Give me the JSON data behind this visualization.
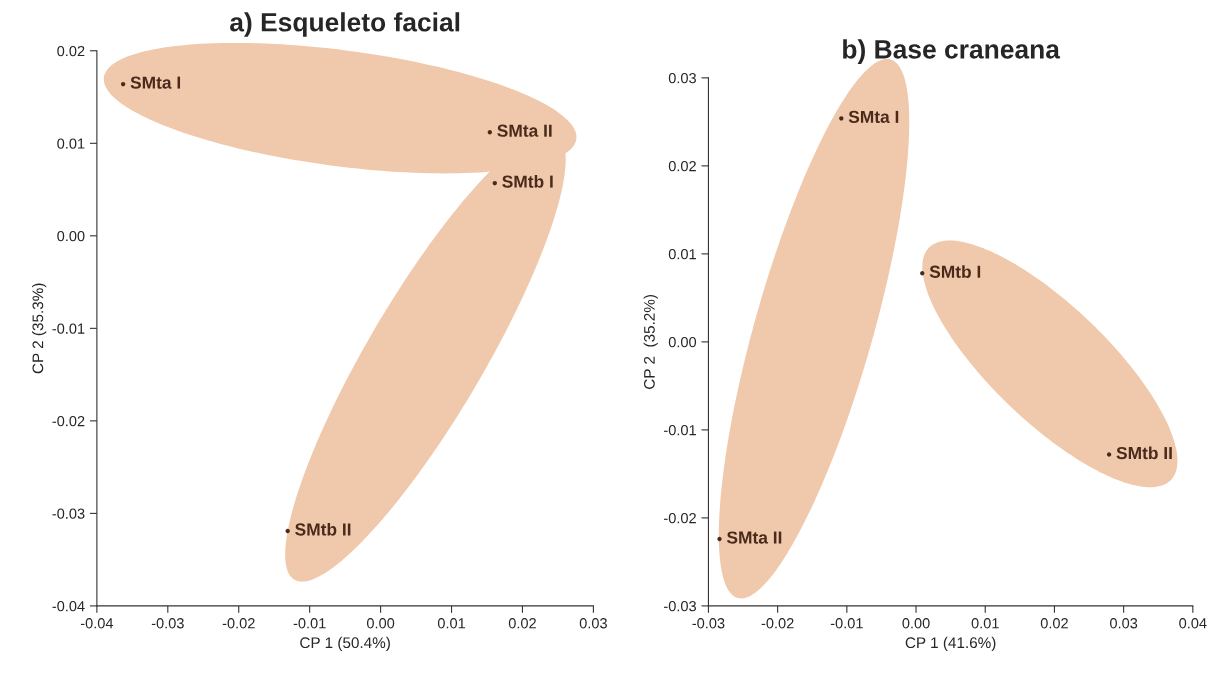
{
  "chart_data": [
    {
      "type": "scatter",
      "title": "a) Esqueleto facial",
      "xlabel": "CP 1 (50.4%)",
      "ylabel": "CP 2 (35.3%)",
      "xlim": [
        -0.04,
        0.03
      ],
      "ylim": [
        -0.04,
        0.02
      ],
      "xticks": [
        {
          "value": -0.04,
          "label": "-0.04"
        },
        {
          "value": -0.03,
          "label": "-0.03"
        },
        {
          "value": -0.02,
          "label": "-0.02"
        },
        {
          "value": -0.01,
          "label": "-0.01"
        },
        {
          "value": 0.0,
          "label": "0.00"
        },
        {
          "value": 0.01,
          "label": "0.01"
        },
        {
          "value": 0.02,
          "label": "0.02"
        },
        {
          "value": 0.03,
          "label": "0.03"
        }
      ],
      "yticks": [
        {
          "value": -0.04,
          "label": "-0.04"
        },
        {
          "value": -0.03,
          "label": "-0.03"
        },
        {
          "value": -0.02,
          "label": "-0.02"
        },
        {
          "value": -0.01,
          "label": "-0.01"
        },
        {
          "value": 0.0,
          "label": "0.00"
        },
        {
          "value": 0.01,
          "label": "0.01"
        },
        {
          "value": 0.02,
          "label": "0.02"
        }
      ],
      "marker": "circle",
      "series": [
        {
          "name": "SMta I",
          "color": "#4a2a1a",
          "x": [
            -0.0363
          ],
          "values": [
            0.0164
          ]
        },
        {
          "name": "SMta II",
          "color": "#4a2a1a",
          "x": [
            0.0154
          ],
          "values": [
            0.0112
          ]
        },
        {
          "name": "SMtb I",
          "color": "#4a2a1a",
          "x": [
            0.0161
          ],
          "values": [
            0.0057
          ]
        },
        {
          "name": "SMtb II",
          "color": "#4a2a1a",
          "x": [
            -0.0131
          ],
          "values": [
            -0.0319
          ]
        }
      ]
    },
    {
      "type": "scatter",
      "title": "b) Base craneana",
      "xlabel": "CP 1 (41.6%)",
      "ylabel": "CP 2  (35.2%)",
      "xlim": [
        -0.03,
        0.04
      ],
      "ylim": [
        -0.03,
        0.03
      ],
      "xticks": [
        {
          "value": -0.03,
          "label": "-0.03"
        },
        {
          "value": -0.02,
          "label": "-0.02"
        },
        {
          "value": -0.01,
          "label": "-0.01"
        },
        {
          "value": 0.0,
          "label": "0.00"
        },
        {
          "value": 0.01,
          "label": "0.01"
        },
        {
          "value": 0.02,
          "label": "0.02"
        },
        {
          "value": 0.03,
          "label": "0.03"
        },
        {
          "value": 0.04,
          "label": "0.04"
        }
      ],
      "yticks": [
        {
          "value": -0.03,
          "label": "-0.03"
        },
        {
          "value": -0.02,
          "label": "-0.02"
        },
        {
          "value": -0.01,
          "label": "-0.01"
        },
        {
          "value": 0.0,
          "label": "0.00"
        },
        {
          "value": 0.01,
          "label": "0.01"
        },
        {
          "value": 0.02,
          "label": "0.02"
        },
        {
          "value": 0.03,
          "label": "0.03"
        }
      ],
      "marker": "circle",
      "series": [
        {
          "name": "SMta I",
          "color": "#4a2a1a",
          "x": [
            -0.0108
          ],
          "values": [
            0.0254
          ]
        },
        {
          "name": "SMta II",
          "color": "#4a2a1a",
          "x": [
            -0.0284
          ],
          "values": [
            -0.0224
          ]
        },
        {
          "name": "SMtb I",
          "color": "#4a2a1a",
          "x": [
            0.0009
          ],
          "values": [
            0.0078
          ]
        },
        {
          "name": "SMtb II",
          "color": "#4a2a1a",
          "x": [
            0.0279
          ],
          "values": [
            -0.0128
          ]
        }
      ]
    }
  ]
}
